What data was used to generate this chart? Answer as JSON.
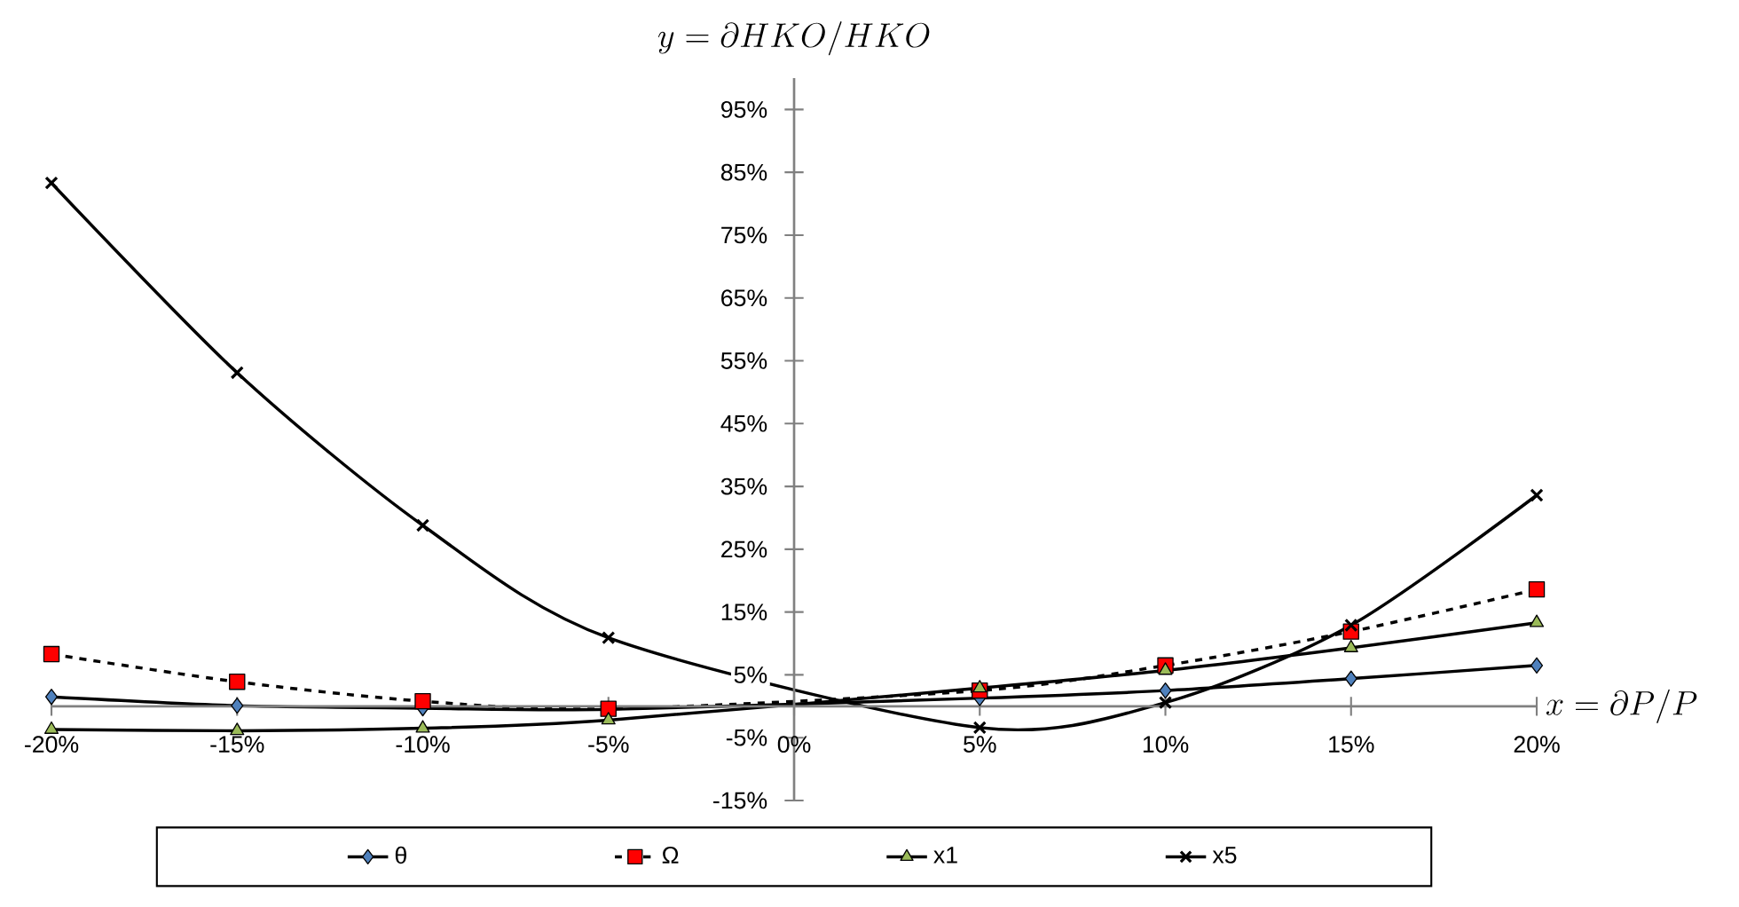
{
  "chart_data": {
    "type": "line",
    "xlabel": "x = \\partial P / P",
    "ylabel": "y = \\partial HKO / HKO",
    "x": [
      -20,
      -15,
      -10,
      -5,
      5,
      10,
      15,
      20
    ],
    "series": [
      {
        "name": "θ",
        "color": "#4f81bd",
        "marker": "diamond",
        "line_style": "solid",
        "values": [
          1.5,
          0.1,
          -0.3,
          -0.5,
          1.3,
          2.5,
          4.4,
          6.5
        ]
      },
      {
        "name": "Ω",
        "color": "#ff0000",
        "marker": "square",
        "line_style": "dashed",
        "values": [
          8.3,
          3.9,
          0.8,
          -0.4,
          2.5,
          6.5,
          11.9,
          18.6
        ]
      },
      {
        "name": "x1",
        "color": "#9bbb59",
        "marker": "triangle",
        "line_style": "solid",
        "values": [
          -3.7,
          -3.9,
          -3.5,
          -2.2,
          2.9,
          5.7,
          9.3,
          13.3
        ]
      },
      {
        "name": "x5",
        "color": "#000000",
        "marker": "cross",
        "line_style": "solid",
        "values": [
          83.3,
          53.1,
          28.8,
          10.9,
          -3.4,
          0.6,
          12.9,
          33.6
        ]
      }
    ],
    "xlim": [
      -20,
      20
    ],
    "ylim": [
      -15,
      100
    ],
    "xticks": [
      {
        "value": -20,
        "label": "-20%"
      },
      {
        "value": -15,
        "label": "-15%"
      },
      {
        "value": -10,
        "label": "-10%"
      },
      {
        "value": -5,
        "label": "-5%"
      },
      {
        "value": 0,
        "label": "0%"
      },
      {
        "value": 5,
        "label": "5%"
      },
      {
        "value": 10,
        "label": "10%"
      },
      {
        "value": 15,
        "label": "15%"
      },
      {
        "value": 20,
        "label": "20%"
      }
    ],
    "yticks": [
      {
        "value": -15,
        "label": "-15%"
      },
      {
        "value": -5,
        "label": "-5%"
      },
      {
        "value": 5,
        "label": "5%"
      },
      {
        "value": 15,
        "label": "15%"
      },
      {
        "value": 25,
        "label": "25%"
      },
      {
        "value": 35,
        "label": "35%"
      },
      {
        "value": 45,
        "label": "45%"
      },
      {
        "value": 55,
        "label": "55%"
      },
      {
        "value": 65,
        "label": "65%"
      },
      {
        "value": 75,
        "label": "75%"
      },
      {
        "value": 85,
        "label": "85%"
      },
      {
        "value": 95,
        "label": "95%"
      }
    ],
    "legend": "bottom",
    "grid": false
  }
}
